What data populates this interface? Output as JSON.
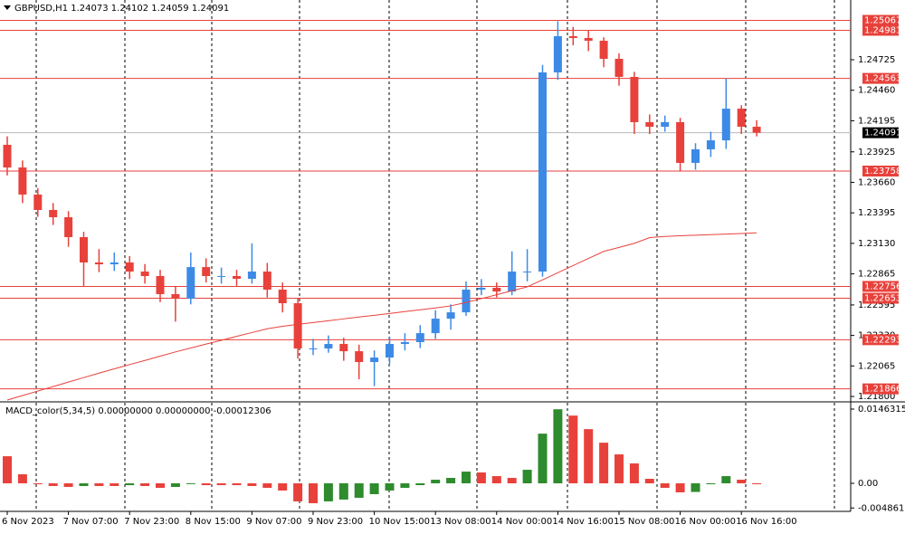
{
  "chart_data": [
    {
      "type": "candlestick",
      "title": "GBPUSD,H1  1.24073 1.24102 1.24059 1.24091",
      "categories": [
        "6 Nov 2023",
        null,
        null,
        null,
        "7 Nov 07:00",
        null,
        null,
        null,
        "7 Nov 23:00",
        null,
        null,
        null,
        "8 Nov 15:00",
        null,
        null,
        null,
        "9 Nov 07:00",
        null,
        null,
        null,
        "9 Nov 23:00",
        null,
        null,
        null,
        "10 Nov 15:00",
        null,
        null,
        null,
        "13 Nov 08:00",
        null,
        null,
        null,
        "14 Nov 00:00",
        null,
        null,
        null,
        "14 Nov 16:00",
        null,
        null,
        null,
        "15 Nov 08:00",
        null,
        null,
        null,
        "16 Nov 00:00",
        null,
        null,
        null,
        "16 Nov 16:00",
        null
      ],
      "open": [
        1.23986,
        1.23789,
        1.23554,
        1.2342,
        1.23357,
        1.23184,
        1.22964,
        1.22948,
        1.22964,
        1.22885,
        1.22846,
        1.22689,
        1.22649,
        1.22924,
        1.22846,
        1.22846,
        1.22822,
        1.22885,
        1.22728,
        1.2261,
        1.22217,
        1.22217,
        1.22256,
        1.22193,
        1.22099,
        1.22138,
        1.22256,
        1.22272,
        1.2235,
        1.22476,
        1.22531,
        1.22728,
        1.22744,
        1.22712,
        1.22885,
        1.22885,
        1.24615,
        1.2493,
        1.24914,
        1.2489,
        1.24733,
        1.24576,
        1.24183,
        1.24143,
        1.24183,
        1.23829,
        1.23947,
        1.24025,
        1.243,
        1.24143
      ],
      "high": [
        1.2406,
        1.2385,
        1.2361,
        1.2348,
        1.2341,
        1.2323,
        1.2308,
        1.2305,
        1.2302,
        1.2295,
        1.229,
        1.2276,
        1.2305,
        1.23,
        1.2292,
        1.229,
        1.2313,
        1.2296,
        1.2279,
        1.2265,
        1.223,
        1.2233,
        1.2231,
        1.2225,
        1.222,
        1.2232,
        1.2235,
        1.2242,
        1.2255,
        1.226,
        1.228,
        1.2282,
        1.2279,
        1.2306,
        1.2308,
        1.2468,
        1.2506,
        1.2501,
        1.2498,
        1.2492,
        1.2478,
        1.2462,
        1.2425,
        1.2424,
        1.2422,
        1.24,
        1.241,
        1.24563,
        1.2433,
        1.242
      ],
      "low": [
        1.2372,
        1.2348,
        1.2336,
        1.2329,
        1.231,
        1.2276,
        1.2288,
        1.2289,
        1.2282,
        1.2278,
        1.2262,
        1.2245,
        1.226,
        1.2279,
        1.2278,
        1.2276,
        1.2278,
        1.2266,
        1.2253,
        1.2213,
        1.2216,
        1.2218,
        1.2211,
        1.2195,
        1.2189,
        1.2208,
        1.222,
        1.2222,
        1.223,
        1.2238,
        1.225,
        1.2268,
        1.2266,
        1.2268,
        1.228,
        1.2284,
        1.2455,
        1.2485,
        1.248,
        1.2466,
        1.245,
        1.2408,
        1.2408,
        1.241,
        1.2376,
        1.2377,
        1.2388,
        1.2395,
        1.2408,
        1.24059
      ],
      "close": [
        1.23789,
        1.23554,
        1.2342,
        1.23357,
        1.23184,
        1.22964,
        1.22948,
        1.22964,
        1.22885,
        1.22846,
        1.22689,
        1.22649,
        1.22924,
        1.22846,
        1.22846,
        1.22822,
        1.22885,
        1.22728,
        1.2261,
        1.22217,
        1.22217,
        1.22256,
        1.22193,
        1.22099,
        1.22138,
        1.22256,
        1.22272,
        1.2235,
        1.22476,
        1.22531,
        1.22728,
        1.22744,
        1.22712,
        1.22885,
        1.22885,
        1.24615,
        1.2493,
        1.24914,
        1.2489,
        1.24733,
        1.24576,
        1.24183,
        1.24143,
        1.24183,
        1.23829,
        1.23947,
        1.24025,
        1.243,
        1.24143,
        1.24091
      ],
      "up_color": "#3d8ae6",
      "down_color": "#e8413b",
      "ma": {
        "color": "#e8413b",
        "values": [
          1.21769,
          1.21808,
          1.21847,
          1.21886,
          1.21925,
          1.21964,
          1.22003,
          1.2204,
          1.22077,
          1.22113,
          1.2215,
          1.22187,
          1.22221,
          1.22255,
          1.22288,
          1.22322,
          1.22355,
          1.22388,
          1.2241,
          1.22426,
          1.22442,
          1.22458,
          1.22474,
          1.2249,
          1.22505,
          1.22521,
          1.22537,
          1.22553,
          1.22569,
          1.22587,
          1.22617,
          1.2265,
          1.22684,
          1.22718,
          1.22752,
          1.22813,
          1.22875,
          1.22937,
          1.22999,
          1.2306,
          1.23095,
          1.2313,
          1.2318,
          1.2319,
          1.23196,
          1.23201,
          1.23206,
          1.23211,
          1.23216,
          1.23221
        ]
      },
      "levels": [
        1.25067,
        1.24981,
        1.24563,
        1.23758,
        1.22756,
        1.22653,
        1.22293,
        1.21866
      ],
      "level_color": "#e8413b",
      "last": 1.24091,
      "ylim": [
        1.21761,
        1.25244
      ],
      "yticks": [
        1.24725,
        {
          "value": 1.2446,
          "label": "1.24460"
        },
        1.24195,
        1.23925,
        {
          "value": 1.2366,
          "label": "1.23660"
        },
        1.23395,
        {
          "value": 1.2313,
          "label": "1.23130"
        },
        1.22865,
        1.22595,
        {
          "value": 1.2233,
          "label": "1.22330"
        },
        1.22065,
        {
          "value": 1.218,
          "label": "1.21800"
        }
      ]
    },
    {
      "type": "bar",
      "title": "MACD_color(5,34,5) 0.00000000 0.00000000 -0.00012306",
      "values": [
        0.00534,
        0.00178,
        0.0,
        -0.00053,
        -0.00071,
        -0.00053,
        -0.00053,
        -0.00053,
        -0.00036,
        -0.00053,
        -0.00089,
        -0.00071,
        2e-05,
        -0.00036,
        -0.00036,
        -0.00036,
        -0.00053,
        -0.00089,
        -0.00142,
        -0.00356,
        -0.00392,
        -0.00356,
        -0.0032,
        -0.00285,
        -0.00214,
        -0.00142,
        -0.00089,
        -0.00036,
        0.00071,
        0.00107,
        0.00231,
        0.00214,
        0.00142,
        0.00107,
        0.00267,
        0.00979,
        0.0146,
        0.01335,
        0.01068,
        0.00801,
        0.0057,
        0.00392,
        0.00089,
        -0.00089,
        -0.00178,
        -0.0017,
        -0.0001,
        0.00142,
        0.00071,
        -0.00012306
      ],
      "up_color": "#2e8b2e",
      "down_color": "#e8413b",
      "ylim": [
        -0.00553,
        0.01588
      ],
      "yticks": [
        0.0146315,
        {
          "value": 0,
          "label": "0.00"
        },
        {
          "value": -0.0048615,
          "label": "-0.0048615"
        }
      ]
    }
  ]
}
